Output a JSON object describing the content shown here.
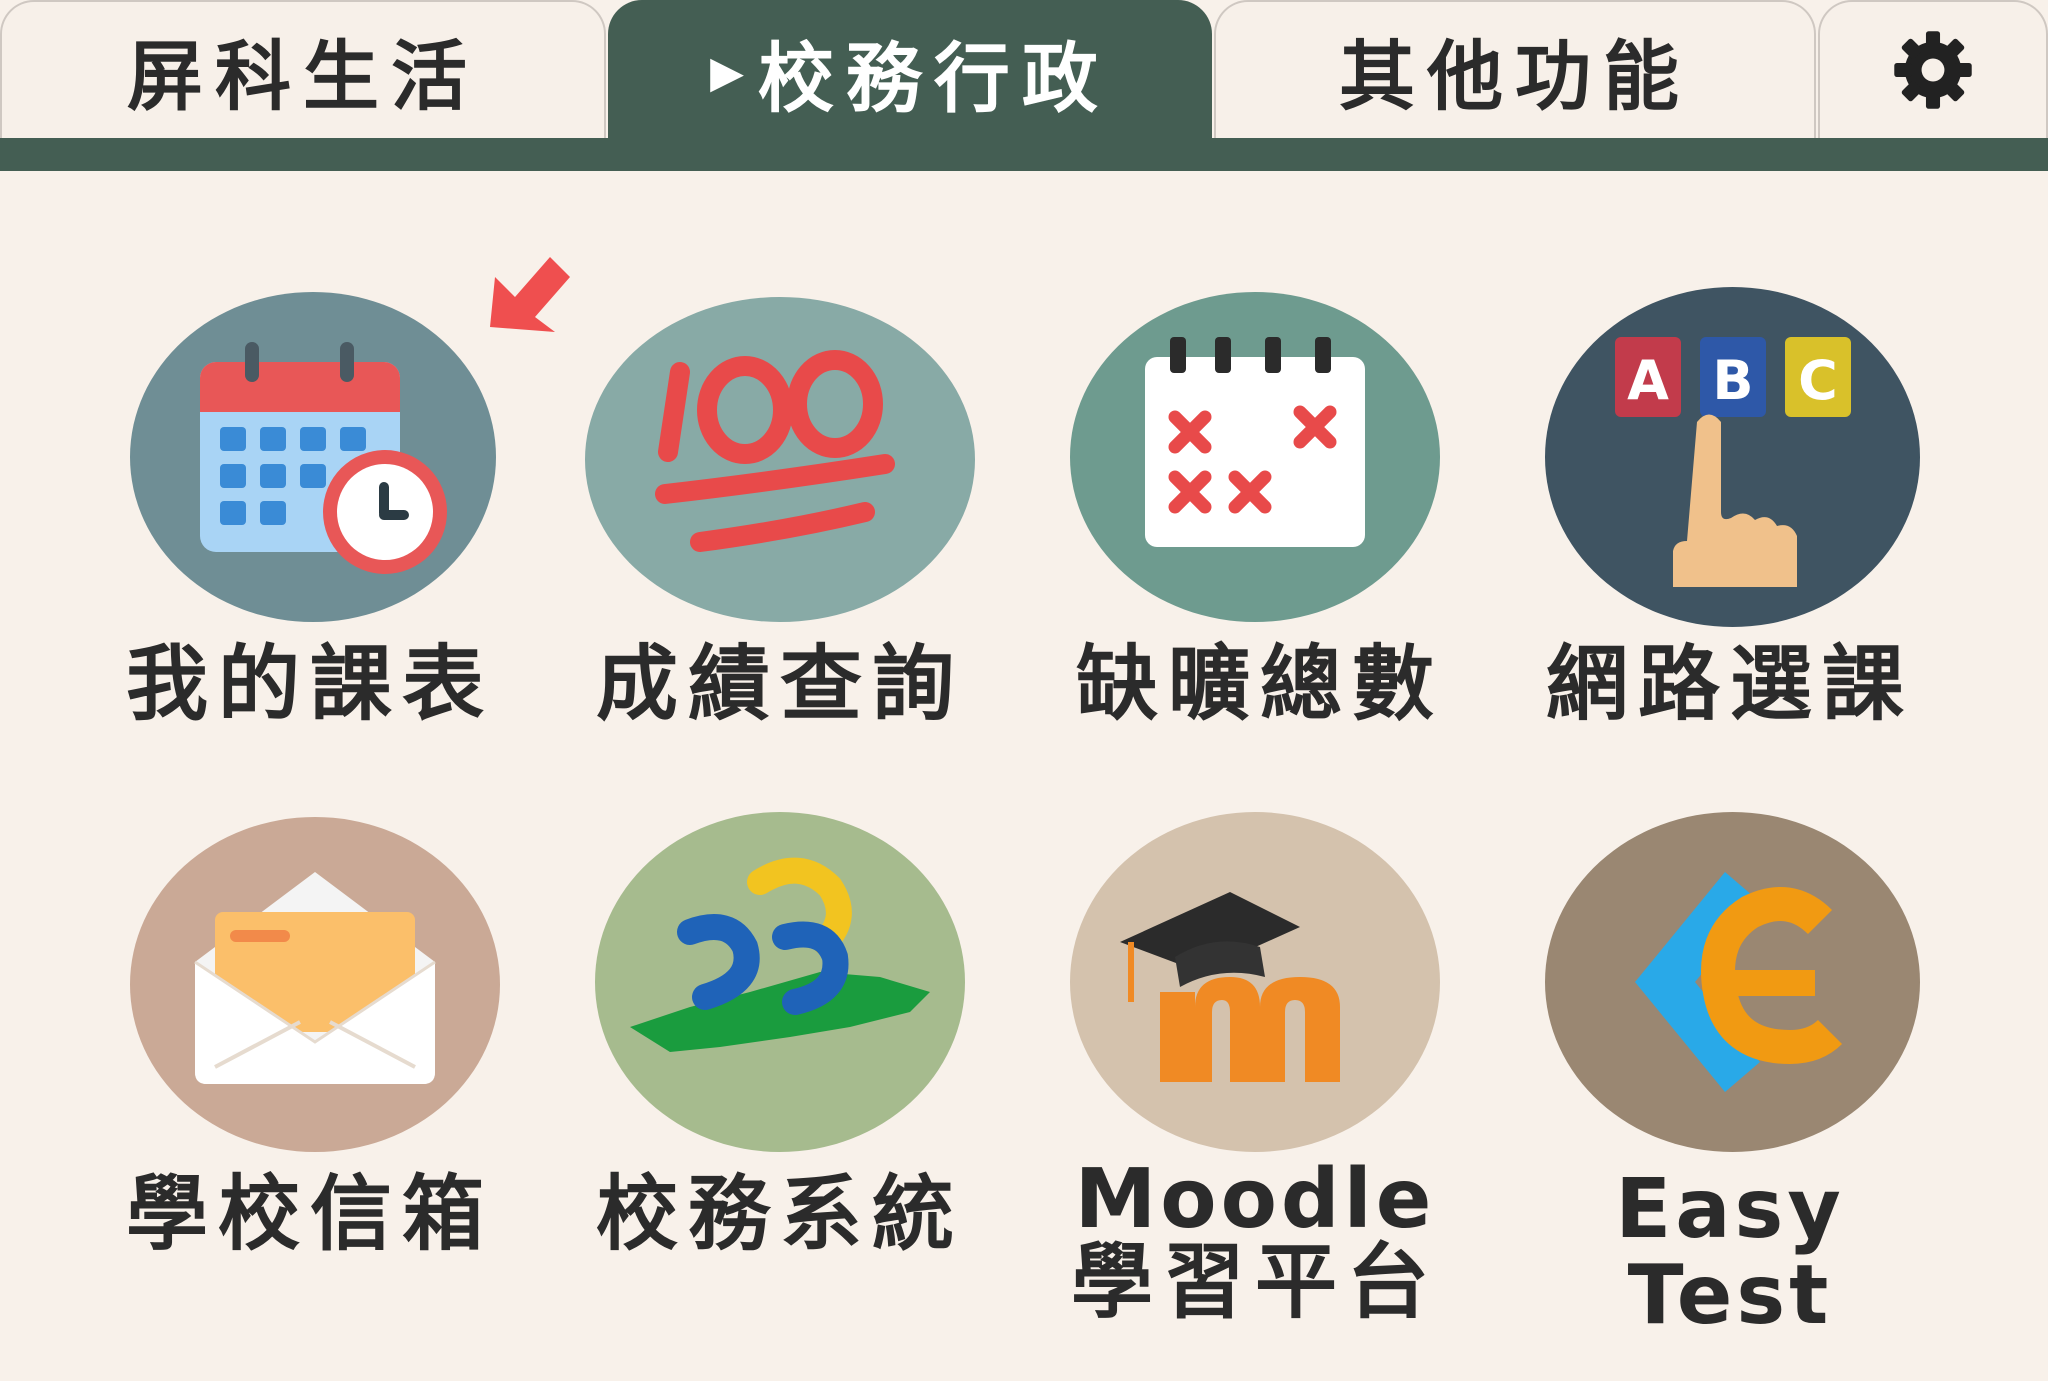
{
  "tabs": [
    {
      "label": "屏科生活",
      "active": false
    },
    {
      "label": "校務行政",
      "active": true,
      "marker": "▶"
    },
    {
      "label": "其他功能",
      "active": false
    }
  ],
  "settings_icon": "gear-icon",
  "colors": {
    "background": "#f8f1ea",
    "active_tab": "#445e53",
    "text": "#2b2b2b"
  },
  "apps": [
    {
      "label": "我的課表",
      "icon": "calendar-clock-icon",
      "bg": "#6f8e95",
      "badge": "new-arrow-icon"
    },
    {
      "label": "成績查詢",
      "icon": "hundred-points-icon",
      "bg": "#88aaa6"
    },
    {
      "label": "缺曠總數",
      "icon": "absence-calendar-icon",
      "bg": "#6e9b8f"
    },
    {
      "label": "網路選課",
      "icon": "abc-selection-icon",
      "bg": "#3f5462"
    },
    {
      "label": "學校信箱",
      "icon": "envelope-icon",
      "bg": "#caa996"
    },
    {
      "label": "校務系統",
      "icon": "school-system-logo-icon",
      "bg": "#a6bb8e"
    },
    {
      "label_line1": "Moodle",
      "label_line2": "學習平台",
      "icon": "moodle-icon",
      "bg": "#d4c2ad"
    },
    {
      "label": "Easy Test",
      "icon": "easy-test-icon",
      "bg": "#9a8772"
    }
  ]
}
